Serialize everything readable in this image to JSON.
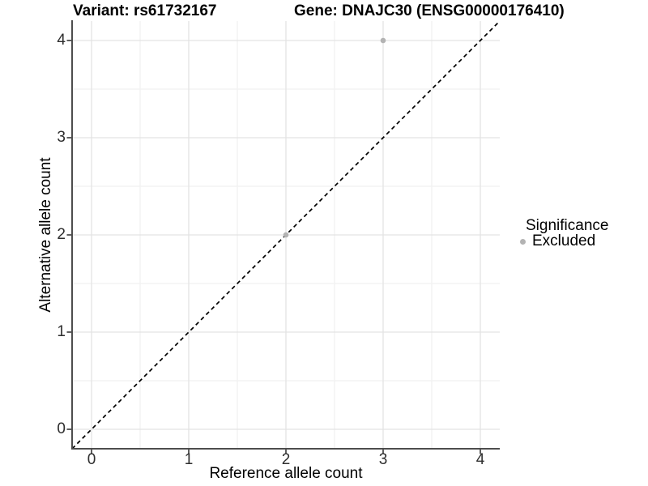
{
  "titles": {
    "variant": "Variant: rs61732167",
    "gene": "Gene: DNAJC30 (ENSG00000176410)"
  },
  "axes": {
    "x_label": "Reference allele count",
    "y_label": "Alternative allele count",
    "x_ticks": [
      "0",
      "1",
      "2",
      "3",
      "4"
    ],
    "y_ticks": [
      "0",
      "1",
      "2",
      "3",
      "4"
    ]
  },
  "legend": {
    "title": "Significance",
    "items": [
      {
        "label": "Excluded",
        "color": "#b3b3b3"
      }
    ]
  },
  "chart_data": {
    "type": "scatter",
    "title": "Variant: rs61732167 | Gene: DNAJC30 (ENSG00000176410)",
    "xlabel": "Reference allele count",
    "ylabel": "Alternative allele count",
    "xlim": [
      -0.2,
      4.2
    ],
    "ylim": [
      -0.2,
      4.2
    ],
    "x_ticks": [
      0,
      1,
      2,
      3,
      4
    ],
    "y_ticks": [
      0,
      1,
      2,
      3,
      4
    ],
    "grid": true,
    "legend_position": "right",
    "series": [
      {
        "name": "Excluded",
        "color": "#b3b3b3",
        "points": [
          {
            "x": 2,
            "y": 2
          },
          {
            "x": 3,
            "y": 4
          }
        ]
      }
    ],
    "reference_line": {
      "type": "identity",
      "style": "dashed",
      "color": "#000000",
      "dash": "5 4"
    },
    "colors": {
      "grid_major": "#e3e3e3",
      "grid_minor": "#f1f1f1",
      "axis_line": "#4d4d4d",
      "tick_text": "#2e2e2e"
    }
  }
}
